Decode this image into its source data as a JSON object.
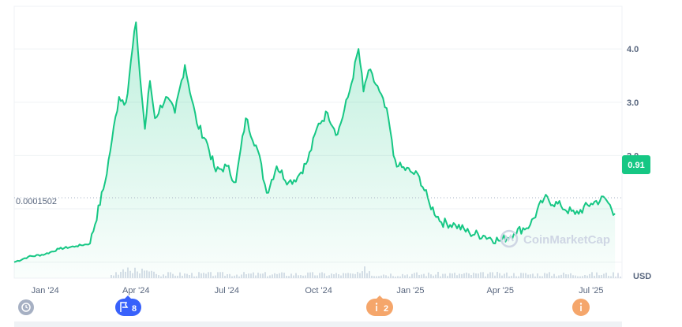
{
  "chart_data": {
    "type": "area",
    "x": [
      "2023-12-01",
      "2023-12-15",
      "2024-01-01",
      "2024-01-15",
      "2024-02-01",
      "2024-02-15",
      "2024-03-01",
      "2024-03-08",
      "2024-03-15",
      "2024-03-22",
      "2024-04-01",
      "2024-04-05",
      "2024-04-10",
      "2024-04-15",
      "2024-04-20",
      "2024-05-01",
      "2024-05-10",
      "2024-05-20",
      "2024-06-01",
      "2024-06-10",
      "2024-06-20",
      "2024-07-01",
      "2024-07-10",
      "2024-07-20",
      "2024-08-01",
      "2024-08-10",
      "2024-08-20",
      "2024-09-01",
      "2024-09-10",
      "2024-09-20",
      "2024-10-01",
      "2024-10-10",
      "2024-10-20",
      "2024-11-01",
      "2024-11-10",
      "2024-11-15",
      "2024-11-20",
      "2024-12-01",
      "2024-12-10",
      "2024-12-15",
      "2024-12-20",
      "2025-01-01",
      "2025-01-10",
      "2025-01-20",
      "2025-02-01",
      "2025-02-15",
      "2025-03-01",
      "2025-03-15",
      "2025-04-01",
      "2025-04-15",
      "2025-05-01",
      "2025-05-15",
      "2025-06-01",
      "2025-06-15",
      "2025-07-01",
      "2025-07-15",
      "2025-07-25"
    ],
    "series": [
      {
        "values": [
          0.0,
          0.1,
          0.15,
          0.25,
          0.3,
          0.35,
          1.5,
          2.3,
          3.1,
          3.0,
          4.5,
          3.5,
          2.5,
          3.4,
          2.7,
          3.1,
          2.8,
          3.7,
          2.6,
          2.3,
          1.7,
          1.8,
          1.5,
          2.7,
          2.1,
          1.3,
          1.8,
          1.5,
          1.6,
          1.9,
          2.6,
          2.8,
          2.4,
          3.2,
          4.0,
          3.2,
          3.6,
          3.2,
          2.7,
          2.0,
          1.8,
          1.7,
          1.6,
          1.1,
          0.75,
          0.7,
          0.55,
          0.5,
          0.4,
          0.55,
          0.7,
          1.2,
          1.05,
          0.9,
          1.1,
          1.2,
          0.91
        ]
      }
    ],
    "yticks": [
      "4.0",
      "3.0",
      "2.0"
    ],
    "xticks": [
      "Jan '24",
      "Apr '24",
      "Jul '24",
      "Oct '24",
      "Jan '25",
      "Apr '25",
      "Jul '25"
    ],
    "ylim": [
      -0.3,
      4.8
    ],
    "currency": "USD",
    "current_value": "0.91",
    "baseline_label": "0.0001502",
    "watermark": "CoinMarketCap",
    "colors": {
      "line": "#16c784",
      "current_badge": "#16c784",
      "event_blue": "#3861fb",
      "event_orange": "#f5a66b",
      "grid": "#eff2f5",
      "axis_text": "#58667e"
    }
  },
  "events": [
    {
      "icon": "history-icon",
      "label": ""
    },
    {
      "icon": "flag-icon",
      "label": "8"
    },
    {
      "icon": "info-icon",
      "label": "2"
    },
    {
      "icon": "info-icon",
      "label": ""
    }
  ]
}
